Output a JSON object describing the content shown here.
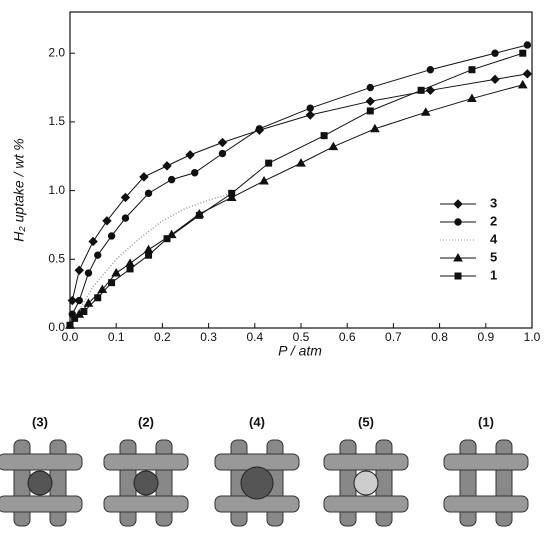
{
  "chart_data": {
    "type": "line",
    "xlabel": "P / atm",
    "ylabel": "H₂ uptake / wt %",
    "xlim": [
      0,
      1
    ],
    "ylim": [
      0,
      2.3
    ],
    "xticks": [
      {
        "value": 0,
        "label": "0.0"
      },
      {
        "value": 0.1,
        "label": "0.1"
      },
      {
        "value": 0.2,
        "label": "0.2"
      },
      {
        "value": 0.3,
        "label": "0.3"
      },
      {
        "value": 0.4,
        "label": "0.4"
      },
      {
        "value": 0.5,
        "label": "0.5"
      },
      {
        "value": 0.6,
        "label": "0.6"
      },
      {
        "value": 0.7,
        "label": "0.7"
      },
      {
        "value": 0.8,
        "label": "0.8"
      },
      {
        "value": 0.9,
        "label": "0.9"
      },
      {
        "value": 1,
        "label": "1.0"
      }
    ],
    "yticks": [
      {
        "value": 0,
        "label": "0.0"
      },
      {
        "value": 0.5,
        "label": "0.5"
      },
      {
        "value": 1,
        "label": "1.0"
      },
      {
        "value": 1.5,
        "label": "1.5"
      },
      {
        "value": 2,
        "label": "2.0"
      }
    ],
    "legend": "lower right",
    "series": [
      {
        "name": "3",
        "color": "#111",
        "marker": "diamond",
        "x": [
          0.005,
          0.02,
          0.05,
          0.08,
          0.12,
          0.16,
          0.21,
          0.26,
          0.33,
          0.41,
          0.52,
          0.65,
          0.78,
          0.92,
          0.99
        ],
        "values": [
          0.2,
          0.42,
          0.63,
          0.78,
          0.95,
          1.1,
          1.18,
          1.26,
          1.35,
          1.44,
          1.55,
          1.65,
          1.73,
          1.81,
          1.85
        ]
      },
      {
        "name": "2",
        "color": "#111",
        "marker": "circle",
        "x": [
          0.005,
          0.02,
          0.04,
          0.06,
          0.09,
          0.12,
          0.17,
          0.22,
          0.27,
          0.33,
          0.41,
          0.52,
          0.65,
          0.78,
          0.92,
          0.99
        ],
        "values": [
          0.1,
          0.2,
          0.4,
          0.53,
          0.67,
          0.8,
          0.98,
          1.08,
          1.13,
          1.27,
          1.45,
          1.6,
          1.75,
          1.88,
          2.0,
          2.06
        ]
      },
      {
        "name": "4",
        "color": "#999",
        "marker": "none",
        "dash": "dotted",
        "x": [
          0,
          0.05,
          0.1,
          0.15,
          0.2,
          0.25,
          0.3,
          0.35
        ],
        "values": [
          0.02,
          0.3,
          0.5,
          0.65,
          0.78,
          0.87,
          0.93,
          0.98
        ]
      },
      {
        "name": "5",
        "color": "#111",
        "marker": "triangle",
        "x": [
          0,
          0.02,
          0.04,
          0.07,
          0.1,
          0.13,
          0.17,
          0.22,
          0.28,
          0.35,
          0.42,
          0.5,
          0.57,
          0.66,
          0.77,
          0.87,
          0.98
        ],
        "values": [
          0.02,
          0.1,
          0.18,
          0.28,
          0.4,
          0.47,
          0.57,
          0.68,
          0.83,
          0.95,
          1.07,
          1.2,
          1.32,
          1.45,
          1.57,
          1.67,
          1.77
        ]
      },
      {
        "name": "1",
        "color": "#111",
        "marker": "square",
        "x": [
          0,
          0.01,
          0.03,
          0.06,
          0.09,
          0.13,
          0.17,
          0.21,
          0.28,
          0.35,
          0.43,
          0.55,
          0.65,
          0.76,
          0.87,
          0.98
        ],
        "values": [
          0.02,
          0.07,
          0.12,
          0.22,
          0.33,
          0.43,
          0.53,
          0.65,
          0.82,
          0.98,
          1.2,
          1.4,
          1.58,
          1.73,
          1.88,
          2.0
        ]
      }
    ]
  },
  "panels": [
    "(3)",
    "(2)",
    "(4)",
    "(5)",
    "(1)"
  ]
}
